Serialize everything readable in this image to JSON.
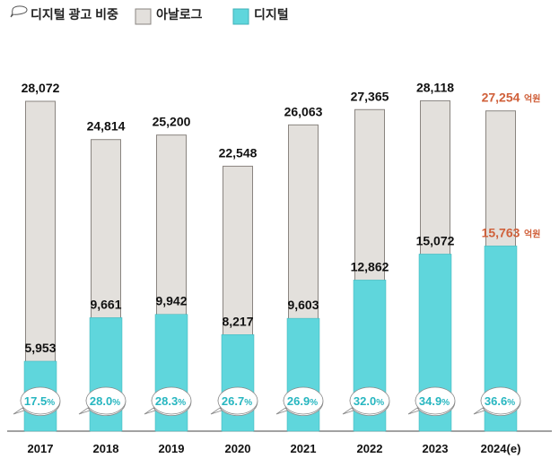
{
  "colors": {
    "analog": "#e3e0dc",
    "analog_stroke": "#8a8580",
    "digital": "#5fd6dc",
    "digital_stroke": "#3fb2b8",
    "share_text": "#27b6c0",
    "highlight": "#d0603a"
  },
  "legend": [
    {
      "key": "share",
      "label": "디지털 광고 비중",
      "icon": "bubble-outline-icon"
    },
    {
      "key": "analog",
      "label": "아날로그",
      "icon": "square-swatch-icon"
    },
    {
      "key": "digital",
      "label": "디지털",
      "icon": "square-swatch-icon"
    }
  ],
  "chart_data": {
    "type": "bar",
    "categories": [
      "2017",
      "2018",
      "2019",
      "2020",
      "2021",
      "2022",
      "2023",
      "2024(e)"
    ],
    "series": [
      {
        "name": "아날로그",
        "values": [
          28072,
          24814,
          25200,
          22548,
          26063,
          27365,
          28118,
          27254
        ],
        "labels": [
          "28,072",
          "24,814",
          "25,200",
          "22,548",
          "26,063",
          "27,365",
          "28,118",
          "27,254"
        ]
      },
      {
        "name": "디지털",
        "values": [
          5953,
          9661,
          9942,
          8217,
          9603,
          12862,
          15072,
          15763
        ],
        "labels": [
          "5,953",
          "9,661",
          "9,942",
          "8,217",
          "9,603",
          "12,862",
          "15,072",
          "15,763"
        ]
      },
      {
        "name": "디지털 광고 비중",
        "values": [
          17.5,
          28.0,
          28.3,
          26.7,
          26.9,
          32.0,
          34.9,
          36.6
        ],
        "labels": [
          "17.5",
          "28.0",
          "28.3",
          "26.7",
          "26.9",
          "32.0",
          "34.9",
          "36.6"
        ],
        "unit": "%"
      }
    ],
    "highlight_category": "2024(e)",
    "value_unit": "억원",
    "title": "",
    "xlabel": "",
    "ylabel": "",
    "ylim": [
      0,
      32000
    ],
    "grid": false,
    "legend_position": "top-left"
  }
}
